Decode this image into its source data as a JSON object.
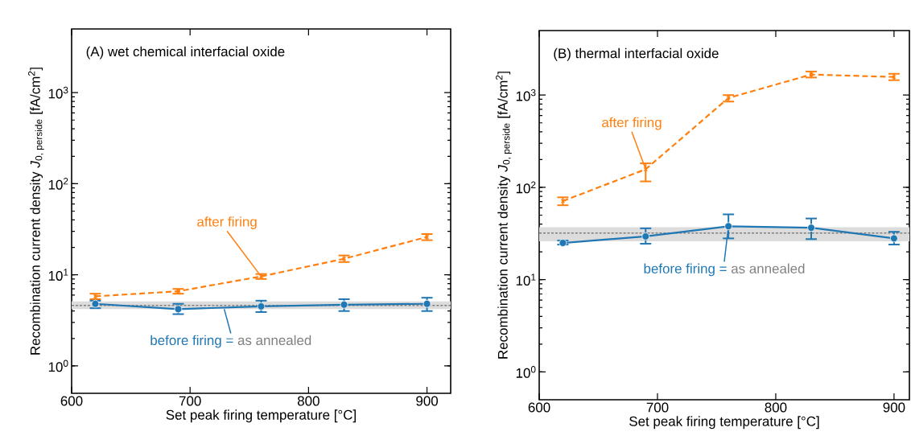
{
  "chart_data": [
    {
      "type": "line",
      "title": "(A)   wet chemical interfacial oxide",
      "xlabel": "Set peak firing temperature [°C]",
      "ylabel": "Recombination current density *J*$_{0, perside}$ [fA/cm$^{2}$]",
      "log": "y",
      "xlim": [
        600,
        920
      ],
      "xticks": [
        600,
        700,
        800,
        900
      ],
      "ylim": [
        0.5,
        5000
      ],
      "yticks": [
        {
          "value": 1,
          "label": "10$^{0}$"
        },
        {
          "value": 10,
          "label": "10$^{1}$"
        },
        {
          "value": 100,
          "label": "10$^{2}$"
        },
        {
          "value": 1000,
          "label": "10$^{3}$"
        }
      ],
      "x": [
        620,
        690,
        760,
        830,
        900
      ],
      "series": [
        {
          "name": "after firing",
          "color": "#ff7f0e",
          "marker": "cross",
          "line_style": "dashed",
          "values": [
            5.8,
            6.6,
            9.6,
            15,
            26
          ],
          "errors": [
            [
              5.4,
              6.2
            ],
            [
              6.2,
              7.0
            ],
            [
              9.0,
              10.2
            ],
            [
              13.8,
              16.3
            ],
            [
              24,
              28
            ]
          ]
        },
        {
          "name": "before firing =",
          "color": "#1f77b4",
          "marker": "circle",
          "line_style": "solid",
          "values": [
            4.8,
            4.2,
            4.5,
            4.7,
            4.8
          ],
          "errors": [
            [
              4.3,
              5.2
            ],
            [
              3.7,
              4.8
            ],
            [
              3.9,
              5.2
            ],
            [
              4.0,
              5.4
            ],
            [
              4.0,
              5.6
            ]
          ]
        }
      ],
      "ref_lines": [
        {
          "axis": "y",
          "value": 4.6,
          "label": "as annealed",
          "color": "#808080",
          "line_style": "dashed"
        }
      ],
      "bands": [
        {
          "axis": "y",
          "from": 4.2,
          "to": 5.1,
          "color": "#dcdcdc"
        }
      ]
    },
    {
      "type": "line",
      "title": "(B)   thermal interfacial oxide",
      "xlabel": "Set peak firing temperature [°C]",
      "ylabel": "Recombination current density *J*$_{0, perside}$ [fA/cm$^{2}$]",
      "log": "y",
      "xlim": [
        600,
        913
      ],
      "xticks": [
        600,
        700,
        800,
        900
      ],
      "ylim": [
        0.5,
        5000
      ],
      "yticks": [
        {
          "value": 1,
          "label": "10$^{0}$"
        },
        {
          "value": 10,
          "label": "10$^{1}$"
        },
        {
          "value": 100,
          "label": "10$^{2}$"
        },
        {
          "value": 1000,
          "label": "10$^{3}$"
        }
      ],
      "x": [
        620,
        690,
        760,
        830,
        900
      ],
      "series": [
        {
          "name": "after firing",
          "color": "#ff7f0e",
          "marker": "cross",
          "line_style": "dashed",
          "values": [
            71,
            157,
            930,
            1670,
            1570
          ],
          "errors": [
            [
              64,
              78
            ],
            [
              116,
              182
            ],
            [
              850,
              1000
            ],
            [
              1550,
              1800
            ],
            [
              1450,
              1700
            ]
          ]
        },
        {
          "name": "before firing =",
          "color": "#1f77b4",
          "marker": "circle",
          "line_style": "solid",
          "values": [
            25,
            29.4,
            37.9,
            36.5,
            28
          ],
          "errors": [
            [
              24,
              26.5
            ],
            [
              24.5,
              36
            ],
            [
              28,
              51
            ],
            [
              27.5,
              46
            ],
            [
              24,
              33
            ]
          ]
        }
      ],
      "ref_lines": [
        {
          "axis": "y",
          "value": 32,
          "label": "as annealed",
          "color": "#808080",
          "line_style": "dashed"
        }
      ],
      "bands": [
        {
          "axis": "y",
          "from": 26,
          "to": 37,
          "color": "#dcdcdc"
        }
      ]
    }
  ]
}
